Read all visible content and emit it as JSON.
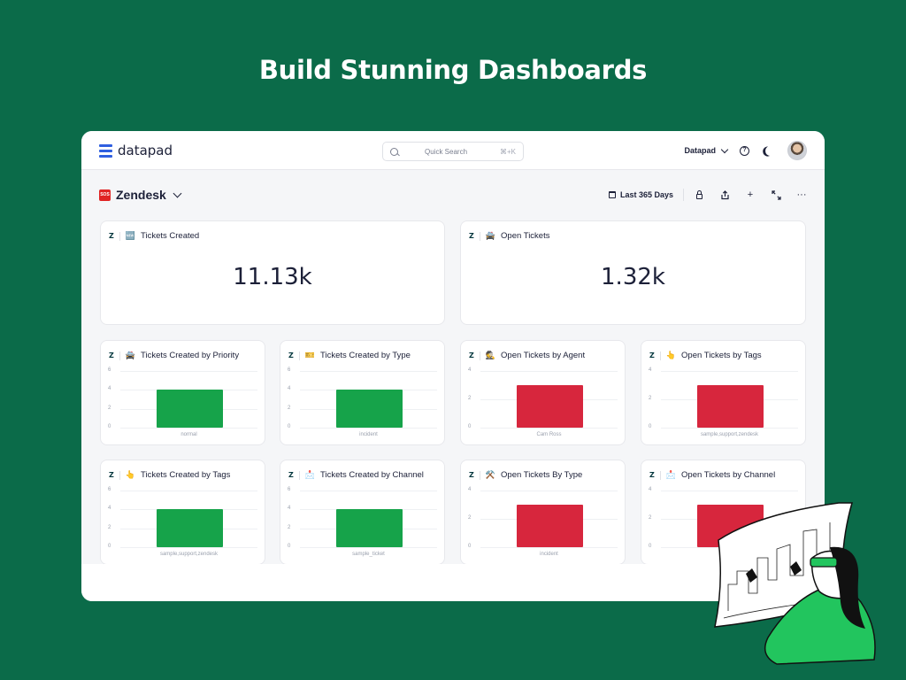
{
  "hero": {
    "title": "Build Stunning Dashboards"
  },
  "topbar": {
    "logo_text": "datapad",
    "search_placeholder": "Quick Search",
    "search_shortcut": "⌘+K",
    "workspace": "Datapad",
    "help_icon": "help-circle-icon",
    "theme_icon": "moon-icon"
  },
  "dashboard": {
    "title": "Zendesk",
    "title_icon": "🆘",
    "range_label": "Last 365 Days",
    "tools": [
      "lock-icon",
      "share-icon",
      "plus-icon",
      "expand-icon",
      "more-icon"
    ]
  },
  "colors": {
    "green_bar": "#16a34a",
    "red_bar": "#d7263d",
    "brand": "#0b6b49",
    "accent": "#2f5fe0"
  },
  "kpis": [
    {
      "icon": "🆕",
      "title": "Tickets Created",
      "value": "11.13k"
    },
    {
      "icon": "🚔",
      "title": "Open Tickets",
      "value": "1.32k"
    }
  ],
  "chart_data": [
    {
      "type": "bar",
      "title": "Tickets Created by Priority",
      "icon": "🚔",
      "categories": [
        "normal"
      ],
      "values": [
        4
      ],
      "yticks": [
        0,
        2,
        4,
        6
      ],
      "ylim": [
        0,
        6
      ],
      "color": "#16a34a"
    },
    {
      "type": "bar",
      "title": "Tickets Created by Type",
      "icon": "🎫",
      "categories": [
        "incident"
      ],
      "values": [
        4
      ],
      "yticks": [
        0,
        2,
        4,
        6
      ],
      "ylim": [
        0,
        6
      ],
      "color": "#16a34a"
    },
    {
      "type": "bar",
      "title": "Open Tickets by Agent",
      "icon": "🕵️",
      "categories": [
        "Cam Ross"
      ],
      "values": [
        3
      ],
      "yticks": [
        0,
        2,
        4
      ],
      "ylim": [
        0,
        4
      ],
      "color": "#d7263d"
    },
    {
      "type": "bar",
      "title": "Open Tickets by Tags",
      "icon": "👆",
      "categories": [
        "sample,support,zendesk"
      ],
      "values": [
        3
      ],
      "yticks": [
        0,
        2,
        4
      ],
      "ylim": [
        0,
        4
      ],
      "color": "#d7263d"
    },
    {
      "type": "bar",
      "title": "Tickets Created by Tags",
      "icon": "👆",
      "categories": [
        "sample,support,zendesk"
      ],
      "values": [
        4
      ],
      "yticks": [
        0,
        2,
        4,
        6
      ],
      "ylim": [
        0,
        6
      ],
      "color": "#16a34a"
    },
    {
      "type": "bar",
      "title": "Tickets Created by Channel",
      "icon": "📩",
      "categories": [
        "sample_ticket"
      ],
      "values": [
        4
      ],
      "yticks": [
        0,
        2,
        4,
        6
      ],
      "ylim": [
        0,
        6
      ],
      "color": "#16a34a"
    },
    {
      "type": "bar",
      "title": "Open Tickets By Type",
      "icon": "⚒️",
      "categories": [
        "incident"
      ],
      "values": [
        3
      ],
      "yticks": [
        0,
        2,
        4
      ],
      "ylim": [
        0,
        4
      ],
      "color": "#d7263d"
    },
    {
      "type": "bar",
      "title": "Open Tickets by Channel",
      "icon": "📩",
      "categories": [
        ""
      ],
      "values": [
        3
      ],
      "yticks": [
        0,
        2,
        4
      ],
      "ylim": [
        0,
        4
      ],
      "color": "#d7263d"
    }
  ]
}
